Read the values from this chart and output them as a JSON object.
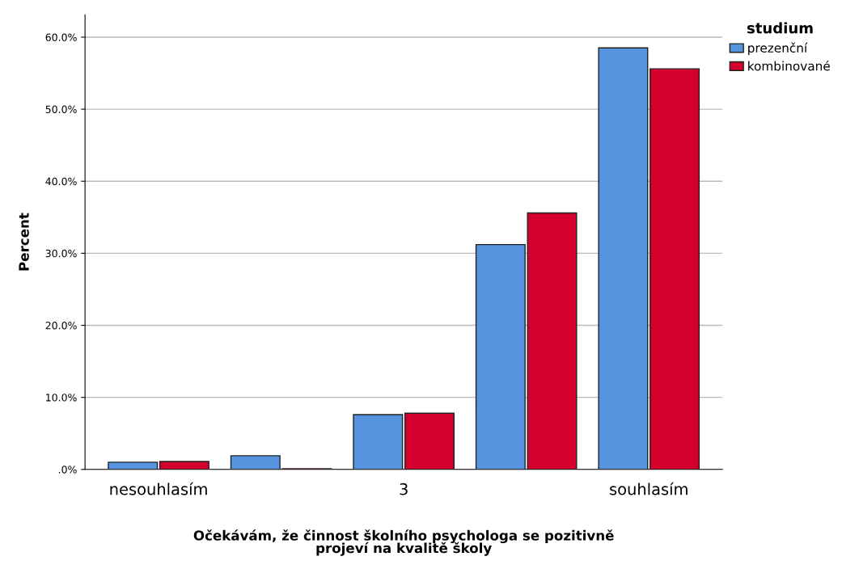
{
  "chart_data": {
    "type": "bar",
    "xlabel": "Očekávám, že činnost školního psychologa se pozitivně\nprojeví na kvalitě školy",
    "ylabel": "Percent",
    "legend_title": "studium",
    "categories": [
      "nesouhlasím",
      null,
      "3",
      null,
      "souhlasím"
    ],
    "series": [
      {
        "name": "prezenční",
        "color": "#5694e0",
        "values": [
          1.0,
          1.9,
          7.6,
          31.2,
          58.5
        ]
      },
      {
        "name": "kombinované",
        "color": "#d4002e",
        "values": [
          1.1,
          0.1,
          7.8,
          35.6,
          55.6
        ]
      }
    ],
    "ylim": [
      0,
      63.1
    ],
    "yticks": [
      {
        "value": 0,
        "label": ".0%"
      },
      {
        "value": 10,
        "label": "10.0%"
      },
      {
        "value": 20,
        "label": "20.0%"
      },
      {
        "value": 30,
        "label": "30.0%"
      },
      {
        "value": 40,
        "label": "40.0%"
      },
      {
        "value": 50,
        "label": "50.0%"
      },
      {
        "value": 60,
        "label": "60.0%"
      }
    ],
    "grid": "y",
    "legend": "top right"
  }
}
